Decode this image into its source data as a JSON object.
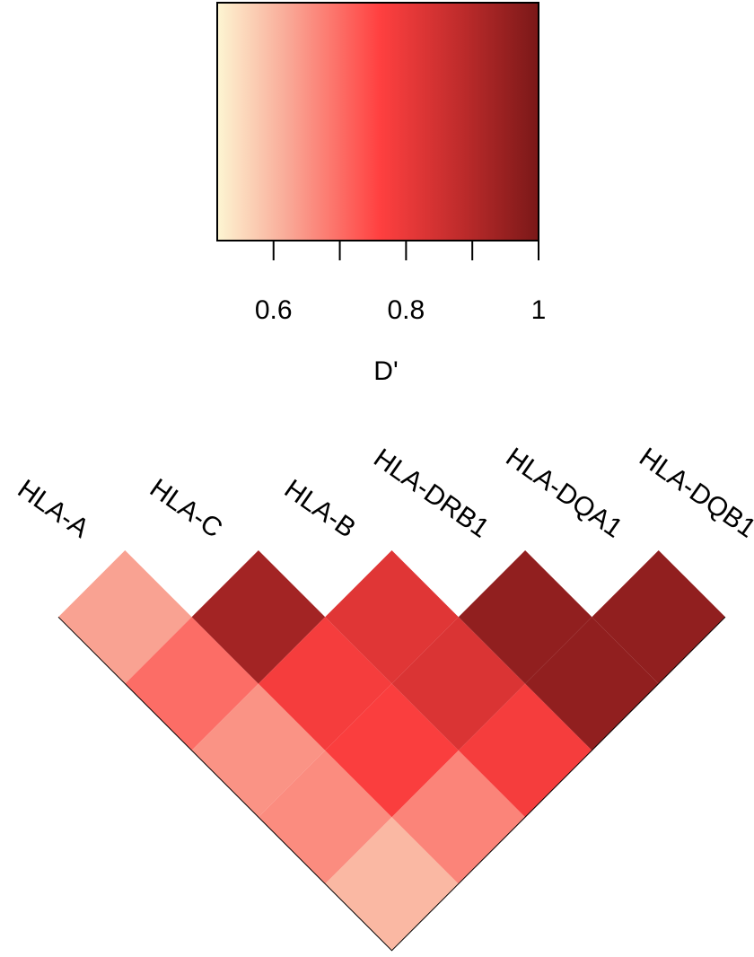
{
  "chart_data": {
    "type": "ld-heatmap",
    "genes": [
      "HLA-A",
      "HLA-C",
      "HLA-B",
      "HLA-DRB1",
      "HLA-DQA1",
      "HLA-DQB1"
    ],
    "values": [
      [
        0.63,
        0.7,
        0.65,
        0.66,
        0.6
      ],
      [
        0.93,
        0.78,
        0.77,
        0.67
      ],
      [
        0.82,
        0.83,
        0.78
      ],
      [
        0.96,
        0.96
      ],
      [
        0.96
      ]
    ],
    "colorscale": [
      {
        "value": 0.515,
        "color": "#fdf5d2"
      },
      {
        "value": 0.62,
        "color": "#f9aa98"
      },
      {
        "value": 0.76,
        "color": "#ff4040"
      },
      {
        "value": 0.88,
        "color": "#c02c2c"
      },
      {
        "value": 1,
        "color": "#7a1818"
      }
    ],
    "clim": [
      0.515,
      1
    ],
    "colorbar_ticks": [
      0.6,
      0.7,
      0.8,
      0.9,
      1
    ],
    "colorbar_labels": [
      0.6,
      0.8,
      1
    ],
    "colorbar_title": "D'"
  }
}
